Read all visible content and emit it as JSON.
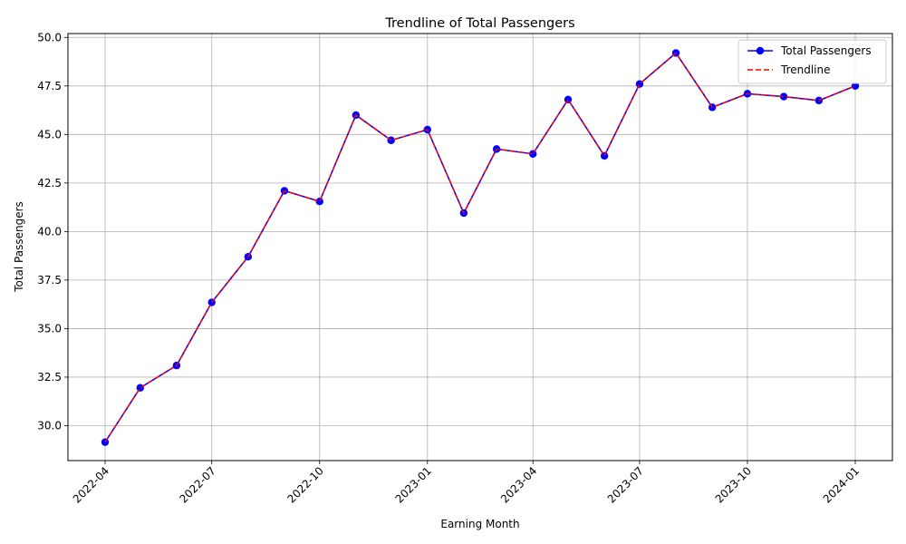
{
  "chart_data": {
    "type": "line",
    "title": "Trendline of Total Passengers",
    "xlabel": "Earning Month",
    "ylabel": "Total Passengers",
    "x_ticks": [
      "2022-04",
      "2022-07",
      "2022-10",
      "2023-01",
      "2023-04",
      "2023-07",
      "2023-10",
      "2024-01"
    ],
    "y_ticks": [
      "30.0",
      "32.5",
      "35.0",
      "37.5",
      "40.0",
      "42.5",
      "45.0",
      "47.5",
      "50.0"
    ],
    "ylim": [
      28.2,
      50.2
    ],
    "grid": true,
    "legend_position": "top-right",
    "x": [
      "2022-04-01",
      "2022-05-01",
      "2022-06-01",
      "2022-07-01",
      "2022-08-01",
      "2022-09-01",
      "2022-10-01",
      "2022-11-01",
      "2022-12-01",
      "2023-01-01",
      "2023-02-01",
      "2023-03-01",
      "2023-04-01",
      "2023-05-01",
      "2023-06-01",
      "2023-07-01",
      "2023-08-01",
      "2023-09-01",
      "2023-10-01",
      "2023-11-01",
      "2023-12-01",
      "2024-01-01"
    ],
    "series": [
      {
        "name": "Total Passengers",
        "color": "#0000ff",
        "style": "solid-with-markers",
        "values": [
          29.15,
          31.95,
          33.1,
          36.35,
          38.7,
          42.1,
          41.55,
          46.0,
          44.7,
          45.25,
          40.95,
          44.25,
          44.0,
          46.8,
          43.9,
          47.6,
          49.2,
          46.4,
          47.1,
          46.95,
          46.75,
          47.5
        ]
      },
      {
        "name": "Trendline",
        "color": "#ff0000",
        "style": "dashed",
        "values": [
          29.15,
          31.95,
          33.1,
          36.35,
          38.7,
          42.1,
          41.55,
          46.0,
          44.7,
          45.25,
          40.95,
          44.25,
          44.0,
          46.8,
          43.9,
          47.6,
          49.2,
          46.4,
          47.1,
          46.95,
          46.75,
          47.5
        ]
      }
    ]
  }
}
